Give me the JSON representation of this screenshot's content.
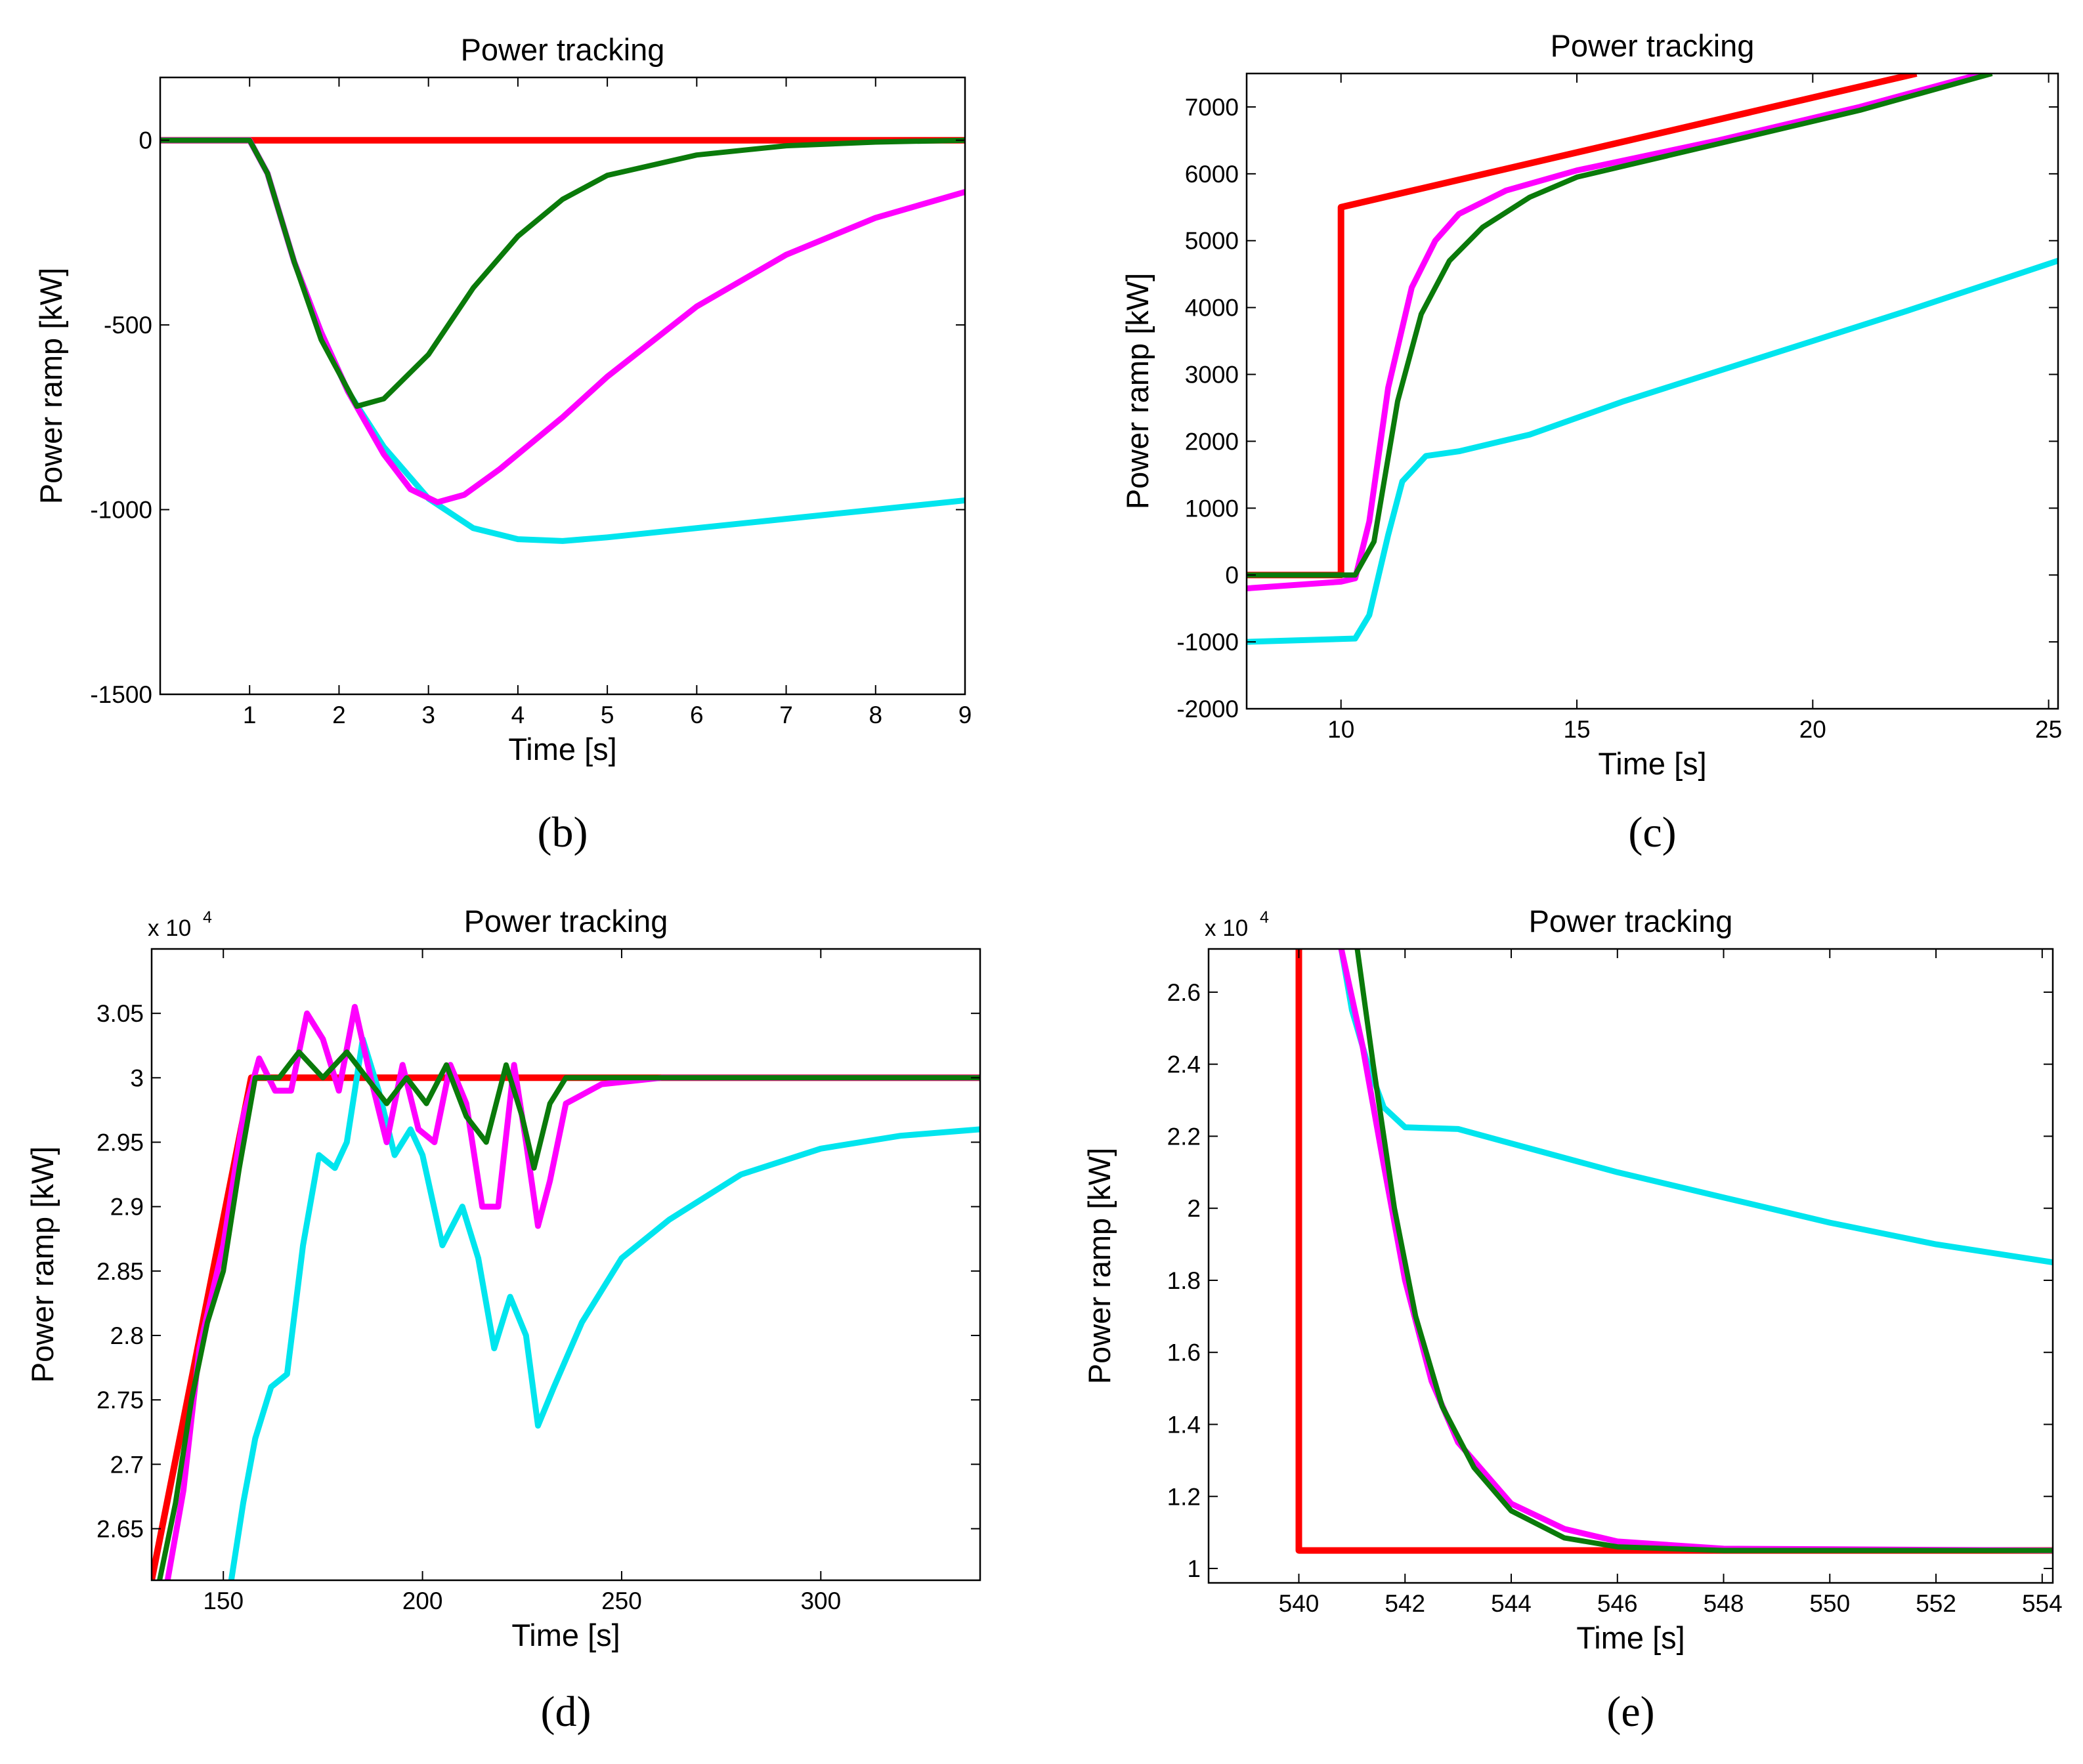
{
  "colors": {
    "reference": "#ff0000",
    "magenta": "#ff00ff",
    "green": "#0a7a0a",
    "cyan": "#00e5ee"
  },
  "chart_data": [
    {
      "id": "b",
      "panel_label": "(b)",
      "type": "line",
      "title": "Power tracking",
      "xlabel": "Time [s]",
      "ylabel": "Power ramp [kW]",
      "xlim": [
        0,
        9
      ],
      "ylim": [
        -1500,
        170
      ],
      "xticks": [
        1,
        2,
        3,
        4,
        5,
        6,
        7,
        8,
        9
      ],
      "yticks": [
        -1500,
        -1000,
        -500,
        0
      ],
      "tick_labels_x": [
        "1",
        "2",
        "3",
        "4",
        "5",
        "6",
        "7",
        "8",
        "9"
      ],
      "tick_labels_y": [
        "-1500",
        "-1000",
        "-500",
        "0"
      ],
      "series": [
        {
          "color": "#ff0000",
          "width": 10,
          "points": [
            [
              0,
              0
            ],
            [
              9,
              0
            ]
          ]
        },
        {
          "color": "#00e5ee",
          "width": 9,
          "points": [
            [
              0,
              0
            ],
            [
              1,
              0
            ],
            [
              1.2,
              -90
            ],
            [
              1.5,
              -330
            ],
            [
              1.8,
              -520
            ],
            [
              2.1,
              -680
            ],
            [
              2.5,
              -830
            ],
            [
              3,
              -970
            ],
            [
              3.5,
              -1050
            ],
            [
              4,
              -1080
            ],
            [
              4.5,
              -1085
            ],
            [
              5,
              -1075
            ],
            [
              6,
              -1050
            ],
            [
              7,
              -1025
            ],
            [
              8,
              -1000
            ],
            [
              9,
              -975
            ]
          ]
        },
        {
          "color": "#ff00ff",
          "width": 9,
          "points": [
            [
              0,
              0
            ],
            [
              1,
              0
            ],
            [
              1.2,
              -90
            ],
            [
              1.5,
              -330
            ],
            [
              1.8,
              -520
            ],
            [
              2.1,
              -680
            ],
            [
              2.5,
              -850
            ],
            [
              2.8,
              -945
            ],
            [
              3.1,
              -980
            ],
            [
              3.4,
              -960
            ],
            [
              3.8,
              -890
            ],
            [
              4.5,
              -750
            ],
            [
              5,
              -640
            ],
            [
              6,
              -450
            ],
            [
              7,
              -310
            ],
            [
              8,
              -210
            ],
            [
              9,
              -140
            ]
          ]
        },
        {
          "color": "#0a7a0a",
          "width": 8,
          "points": [
            [
              0,
              0
            ],
            [
              1,
              0
            ],
            [
              1.2,
              -90
            ],
            [
              1.5,
              -330
            ],
            [
              1.8,
              -540
            ],
            [
              2.2,
              -720
            ],
            [
              2.5,
              -700
            ],
            [
              3,
              -580
            ],
            [
              3.5,
              -400
            ],
            [
              4,
              -260
            ],
            [
              4.5,
              -160
            ],
            [
              5,
              -95
            ],
            [
              6,
              -40
            ],
            [
              7,
              -15
            ],
            [
              8,
              -5
            ],
            [
              9,
              0
            ]
          ]
        }
      ]
    },
    {
      "id": "c",
      "panel_label": "(c)",
      "type": "line",
      "title": "Power tracking",
      "xlabel": "Time [s]",
      "ylabel": "Power ramp [kW]",
      "xlim": [
        8,
        25.2
      ],
      "ylim": [
        -2000,
        7500
      ],
      "xticks": [
        10,
        15,
        20,
        25
      ],
      "yticks": [
        -2000,
        -1000,
        0,
        1000,
        2000,
        3000,
        4000,
        5000,
        6000,
        7000
      ],
      "tick_labels_x": [
        "10",
        "15",
        "20",
        "25"
      ],
      "tick_labels_y": [
        "-2000",
        "-1000",
        "0",
        "1000",
        "2000",
        "3000",
        "4000",
        "5000",
        "6000",
        "7000"
      ],
      "series": [
        {
          "color": "#ff0000",
          "width": 10,
          "points": [
            [
              8,
              0
            ],
            [
              10,
              0
            ],
            [
              10,
              5500
            ],
            [
              22.2,
              7500
            ]
          ]
        },
        {
          "color": "#00e5ee",
          "width": 9,
          "points": [
            [
              8,
              -1000
            ],
            [
              10.3,
              -950
            ],
            [
              10.6,
              -600
            ],
            [
              11,
              600
            ],
            [
              11.3,
              1400
            ],
            [
              11.8,
              1780
            ],
            [
              12.5,
              1850
            ],
            [
              14,
              2100
            ],
            [
              16,
              2600
            ],
            [
              18,
              3050
            ],
            [
              20,
              3500
            ],
            [
              22,
              3950
            ],
            [
              25.2,
              4700
            ]
          ]
        },
        {
          "color": "#ff00ff",
          "width": 9,
          "points": [
            [
              8,
              -200
            ],
            [
              10,
              -100
            ],
            [
              10.3,
              -50
            ],
            [
              10.6,
              800
            ],
            [
              11,
              2800
            ],
            [
              11.5,
              4300
            ],
            [
              12,
              5000
            ],
            [
              12.5,
              5400
            ],
            [
              13.5,
              5750
            ],
            [
              15,
              6050
            ],
            [
              18,
              6500
            ],
            [
              21,
              7000
            ],
            [
              23.6,
              7500
            ]
          ]
        },
        {
          "color": "#0a7a0a",
          "width": 8,
          "points": [
            [
              8,
              0
            ],
            [
              10.3,
              0
            ],
            [
              10.7,
              500
            ],
            [
              11.2,
              2600
            ],
            [
              11.7,
              3900
            ],
            [
              12.3,
              4700
            ],
            [
              13,
              5200
            ],
            [
              14,
              5650
            ],
            [
              15,
              5950
            ],
            [
              18,
              6450
            ],
            [
              21,
              6950
            ],
            [
              23.8,
              7500
            ]
          ]
        }
      ]
    },
    {
      "id": "d",
      "panel_label": "(d)",
      "type": "line",
      "title": "Power tracking",
      "xlabel": "Time [s]",
      "ylabel": "Power ramp [kW]",
      "multiplier": "x 10",
      "multiplier_exp": "4",
      "xlim": [
        132,
        340
      ],
      "ylim": [
        2.61,
        3.1
      ],
      "xticks": [
        150,
        200,
        250,
        300
      ],
      "yticks": [
        2.65,
        2.7,
        2.75,
        2.8,
        2.85,
        2.9,
        2.95,
        3,
        3.05
      ],
      "tick_labels_x": [
        "150",
        "200",
        "250",
        "300"
      ],
      "tick_labels_y": [
        "2.65",
        "2.7",
        "2.75",
        "2.8",
        "2.85",
        "2.9",
        "2.95",
        "3",
        "3.05"
      ],
      "series": [
        {
          "color": "#ff0000",
          "width": 10,
          "points": [
            [
              132,
              2.61
            ],
            [
              157,
              3.0
            ],
            [
              340,
              3.0
            ]
          ]
        },
        {
          "color": "#00e5ee",
          "width": 9,
          "points": [
            [
              152,
              2.61
            ],
            [
              155,
              2.67
            ],
            [
              158,
              2.72
            ],
            [
              162,
              2.76
            ],
            [
              166,
              2.77
            ],
            [
              170,
              2.87
            ],
            [
              174,
              2.94
            ],
            [
              178,
              2.93
            ],
            [
              181,
              2.95
            ],
            [
              185,
              3.03
            ],
            [
              189,
              2.99
            ],
            [
              193,
              2.94
            ],
            [
              197,
              2.96
            ],
            [
              200,
              2.94
            ],
            [
              205,
              2.87
            ],
            [
              210,
              2.9
            ],
            [
              214,
              2.86
            ],
            [
              218,
              2.79
            ],
            [
              222,
              2.83
            ],
            [
              226,
              2.8
            ],
            [
              229,
              2.73
            ],
            [
              233,
              2.76
            ],
            [
              240,
              2.81
            ],
            [
              250,
              2.86
            ],
            [
              262,
              2.89
            ],
            [
              280,
              2.925
            ],
            [
              300,
              2.945
            ],
            [
              320,
              2.955
            ],
            [
              340,
              2.96
            ]
          ]
        },
        {
          "color": "#ff00ff",
          "width": 9,
          "points": [
            [
              136,
              2.61
            ],
            [
              140,
              2.68
            ],
            [
              144,
              2.79
            ],
            [
              147,
              2.83
            ],
            [
              150,
              2.87
            ],
            [
              155,
              2.97
            ],
            [
              159,
              3.015
            ],
            [
              163,
              2.99
            ],
            [
              167,
              2.99
            ],
            [
              171,
              3.05
            ],
            [
              175,
              3.03
            ],
            [
              179,
              2.99
            ],
            [
              183,
              3.055
            ],
            [
              187,
              3.0
            ],
            [
              191,
              2.95
            ],
            [
              195,
              3.01
            ],
            [
              199,
              2.96
            ],
            [
              203,
              2.95
            ],
            [
              207,
              3.01
            ],
            [
              211,
              2.98
            ],
            [
              215,
              2.9
            ],
            [
              219,
              2.9
            ],
            [
              223,
              3.01
            ],
            [
              226,
              2.95
            ],
            [
              229,
              2.885
            ],
            [
              232,
              2.92
            ],
            [
              236,
              2.98
            ],
            [
              245,
              2.995
            ],
            [
              260,
              3.0
            ],
            [
              340,
              3.0
            ]
          ]
        },
        {
          "color": "#0a7a0a",
          "width": 8,
          "points": [
            [
              134,
              2.61
            ],
            [
              138,
              2.67
            ],
            [
              142,
              2.75
            ],
            [
              146,
              2.81
            ],
            [
              150,
              2.85
            ],
            [
              154,
              2.93
            ],
            [
              158,
              3.0
            ],
            [
              164,
              3.0
            ],
            [
              169,
              3.02
            ],
            [
              175,
              3.0
            ],
            [
              181,
              3.02
            ],
            [
              186,
              3.0
            ],
            [
              191,
              2.98
            ],
            [
              196,
              3.0
            ],
            [
              201,
              2.98
            ],
            [
              206,
              3.01
            ],
            [
              211,
              2.97
            ],
            [
              216,
              2.95
            ],
            [
              221,
              3.01
            ],
            [
              225,
              2.97
            ],
            [
              228,
              2.93
            ],
            [
              232,
              2.98
            ],
            [
              236,
              3.0
            ],
            [
              340,
              3.0
            ]
          ]
        }
      ]
    },
    {
      "id": "e",
      "panel_label": "(e)",
      "type": "line",
      "title": "Power tracking",
      "xlabel": "Time [s]",
      "ylabel": "Power ramp [kW]",
      "multiplier": "x 10",
      "multiplier_exp": "4",
      "xlim": [
        538.3,
        554.2
      ],
      "ylim": [
        0.96,
        2.72
      ],
      "xticks": [
        540,
        542,
        544,
        546,
        548,
        550,
        552,
        554
      ],
      "yticks": [
        1,
        1.2,
        1.4,
        1.6,
        1.8,
        2,
        2.2,
        2.4,
        2.6
      ],
      "tick_labels_x": [
        "540",
        "542",
        "544",
        "546",
        "548",
        "550",
        "552",
        "554"
      ],
      "tick_labels_y": [
        "1",
        "1.2",
        "1.4",
        "1.6",
        "1.8",
        "2",
        "2.2",
        "2.4",
        "2.6"
      ],
      "series": [
        {
          "color": "#ff0000",
          "width": 10,
          "points": [
            [
              540,
              2.72
            ],
            [
              540,
              1.05
            ],
            [
              554.2,
              1.05
            ]
          ]
        },
        {
          "color": "#00e5ee",
          "width": 9,
          "points": [
            [
              540.8,
              2.72
            ],
            [
              541,
              2.55
            ],
            [
              541.3,
              2.4
            ],
            [
              541.6,
              2.28
            ],
            [
              542,
              2.225
            ],
            [
              543,
              2.22
            ],
            [
              544,
              2.18
            ],
            [
              546,
              2.1
            ],
            [
              548,
              2.03
            ],
            [
              550,
              1.96
            ],
            [
              552,
              1.9
            ],
            [
              554.2,
              1.85
            ]
          ]
        },
        {
          "color": "#ff00ff",
          "width": 9,
          "points": [
            [
              540.8,
              2.72
            ],
            [
              541.2,
              2.45
            ],
            [
              541.6,
              2.12
            ],
            [
              542,
              1.8
            ],
            [
              542.5,
              1.52
            ],
            [
              543,
              1.35
            ],
            [
              544,
              1.18
            ],
            [
              545,
              1.11
            ],
            [
              546,
              1.075
            ],
            [
              548,
              1.055
            ],
            [
              554.2,
              1.05
            ]
          ]
        },
        {
          "color": "#0a7a0a",
          "width": 8,
          "points": [
            [
              541.1,
              2.72
            ],
            [
              541.4,
              2.4
            ],
            [
              541.8,
              2.0
            ],
            [
              542.2,
              1.7
            ],
            [
              542.7,
              1.45
            ],
            [
              543.3,
              1.28
            ],
            [
              544,
              1.16
            ],
            [
              545,
              1.085
            ],
            [
              546,
              1.06
            ],
            [
              548,
              1.05
            ],
            [
              554.2,
              1.05
            ]
          ]
        }
      ]
    }
  ]
}
